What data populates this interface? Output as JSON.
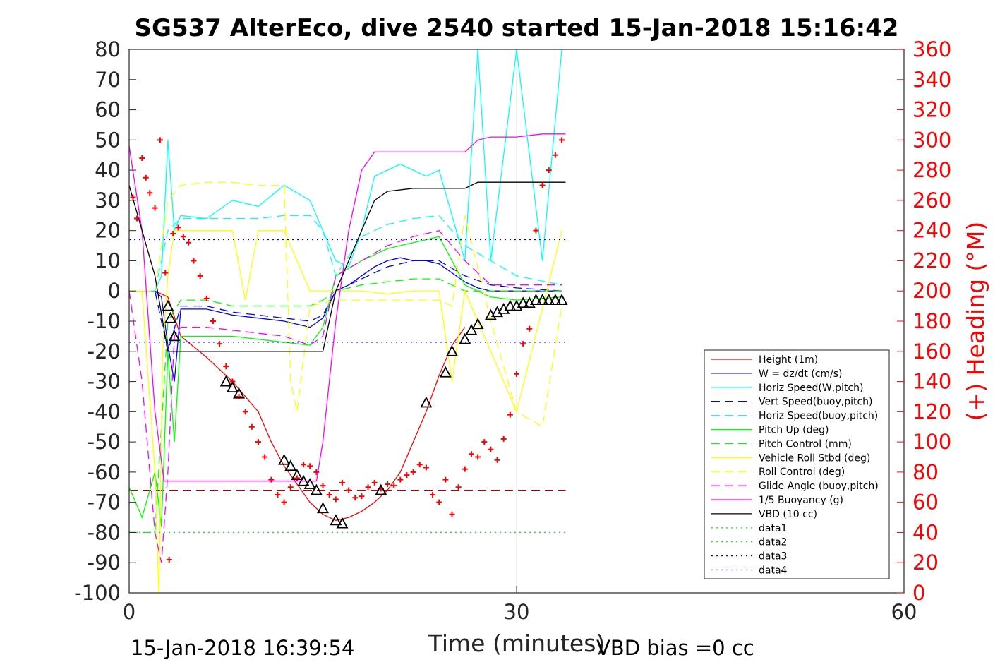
{
  "chart_data": {
    "type": "line",
    "title": "SG537 AlterEco, dive 2540 started 15-Jan-2018 15:16:42",
    "xlabel": "Time (minutes)",
    "ylabel_right": "(+) Heading (°M)",
    "xlim": [
      0,
      60
    ],
    "ylim": [
      -100,
      80
    ],
    "ylim_right": [
      0,
      360
    ],
    "x_ticks": [
      "0",
      "30",
      "60"
    ],
    "y_ticks": [
      "80",
      "70",
      "60",
      "50",
      "40",
      "30",
      "20",
      "10",
      "0",
      "-10",
      "-20",
      "-30",
      "-40",
      "-50",
      "-60",
      "-70",
      "-80",
      "-90",
      "-100"
    ],
    "y_ticks_right": [
      "360",
      "340",
      "320",
      "300",
      "280",
      "260",
      "240",
      "220",
      "200",
      "180",
      "160",
      "140",
      "120",
      "100",
      "80",
      "60",
      "40",
      "20",
      "0"
    ],
    "footer_left": "15-Jan-2018 16:39:54",
    "footer_right": "VBD bias =0 cc",
    "grid": "x-only",
    "legend_position": "right",
    "legend": [
      {
        "label": "Height (1m)",
        "color": "#ff0000",
        "style": "solid"
      },
      {
        "label": "W = dz/dt (cm/s)",
        "color": "#0000ff",
        "style": "solid"
      },
      {
        "label": "Horiz Speed(W,pitch)",
        "color": "#00ffff",
        "style": "solid"
      },
      {
        "label": "Vert Speed(buoy,pitch)",
        "color": "#0000ff",
        "style": "dashed"
      },
      {
        "label": "Horiz Speed(buoy,pitch)",
        "color": "#00ffff",
        "style": "dashed"
      },
      {
        "label": "Pitch Up (deg)",
        "color": "#00ff00",
        "style": "solid"
      },
      {
        "label": "Pitch Control (mm)",
        "color": "#00ff00",
        "style": "dashed"
      },
      {
        "label": "Vehicle Roll Stbd (deg)",
        "color": "#ffff00",
        "style": "solid"
      },
      {
        "label": "Roll Control (deg)",
        "color": "#ffff00",
        "style": "dashed"
      },
      {
        "label": "Glide Angle (buoy,pitch)",
        "color": "#ff00ff",
        "style": "dashed"
      },
      {
        "label": "1/5 Buoyancy (g)",
        "color": "#ff00ff",
        "style": "solid"
      },
      {
        "label": "VBD (10 cc)",
        "color": "#000000",
        "style": "solid"
      },
      {
        "label": "data1",
        "color": "#00ff00",
        "style": "dotted"
      },
      {
        "label": "data2",
        "color": "#00ff00",
        "style": "dotted"
      },
      {
        "label": "data3",
        "color": "#0000ff",
        "style": "dotted"
      },
      {
        "label": "data4",
        "color": "#0000ff",
        "style": "dotted"
      }
    ],
    "series": [
      {
        "name": "Height (1m)",
        "axis": "left",
        "color": "#ff0000",
        "style": "solid",
        "x": [
          0,
          2,
          3,
          4,
          6,
          8,
          10,
          11,
          12,
          13,
          14,
          15,
          16,
          17,
          18,
          19,
          20,
          21,
          22,
          23,
          24,
          25,
          26
        ],
        "y": [
          0,
          0,
          -2,
          -15,
          -22,
          -30,
          -40,
          -50,
          -58,
          -64,
          -70,
          -74,
          -76,
          -75,
          -73,
          -70,
          -66,
          -60,
          -50,
          -40,
          -28,
          -18,
          -12
        ]
      },
      {
        "name": "W = dz/dt (cm/s)",
        "axis": "left",
        "color": "#0000ff",
        "style": "solid",
        "x": [
          0,
          2,
          2.5,
          3,
          3.5,
          4,
          6,
          8,
          10,
          12,
          14,
          15,
          16,
          17,
          18,
          19,
          20,
          21,
          22,
          23,
          24,
          25,
          26,
          27,
          28,
          30,
          33
        ],
        "y": [
          0,
          0,
          -2,
          -18,
          -30,
          -6,
          -6,
          -8,
          -9,
          -10,
          -12,
          -9,
          0,
          2,
          5,
          8,
          10,
          11,
          10,
          10,
          9,
          6,
          3,
          1,
          0,
          0,
          0
        ]
      },
      {
        "name": "Horiz Speed(W,pitch)",
        "axis": "left",
        "color": "#00ffff",
        "style": "solid",
        "x": [
          0,
          2,
          2.5,
          3,
          3.5,
          4,
          6,
          8,
          10,
          12,
          14,
          15,
          16,
          17,
          18,
          19,
          20,
          21,
          22,
          23,
          24,
          25,
          26,
          27,
          28,
          30,
          32,
          33.5
        ],
        "y": [
          0,
          0,
          5,
          50,
          20,
          25,
          24,
          30,
          28,
          35,
          30,
          20,
          10,
          8,
          20,
          38,
          40,
          42,
          40,
          38,
          40,
          25,
          10,
          80,
          10,
          80,
          10,
          80
        ]
      },
      {
        "name": "Vert Speed(buoy,pitch)",
        "axis": "left",
        "color": "#0000ff",
        "style": "dashed",
        "x": [
          0,
          2,
          3,
          4,
          6,
          8,
          10,
          12,
          14,
          15,
          16,
          18,
          20,
          22,
          24,
          26,
          28,
          30,
          33.5
        ],
        "y": [
          0,
          0,
          -20,
          -5,
          -5,
          -7,
          -8,
          -9,
          -10,
          -8,
          0,
          4,
          8,
          10,
          10,
          5,
          2,
          1,
          0
        ]
      },
      {
        "name": "Horiz Speed(buoy,pitch)",
        "axis": "left",
        "color": "#00ffff",
        "style": "dashed",
        "x": [
          0,
          2,
          3,
          4,
          6,
          8,
          10,
          12,
          14,
          15,
          16,
          18,
          20,
          22,
          24,
          26,
          28,
          30,
          33.5
        ],
        "y": [
          0,
          0,
          20,
          24,
          24,
          24,
          24,
          25,
          25,
          20,
          5,
          18,
          22,
          24,
          25,
          15,
          10,
          5,
          2
        ]
      },
      {
        "name": "Pitch Up (deg)",
        "axis": "left",
        "color": "#00ff00",
        "style": "solid",
        "x": [
          0,
          1,
          2,
          2.5,
          3,
          3.5,
          4,
          6,
          8,
          10,
          12,
          14,
          15,
          16,
          18,
          20,
          22,
          24,
          25,
          26,
          28,
          30,
          33.5
        ],
        "y": [
          -65,
          -75,
          -60,
          -78,
          -20,
          -50,
          -15,
          -15,
          -15,
          -16,
          -17,
          -18,
          -12,
          5,
          10,
          14,
          16,
          18,
          10,
          2,
          -2,
          -3,
          -2
        ]
      },
      {
        "name": "Pitch Control (mm)",
        "axis": "left",
        "color": "#00ff00",
        "style": "dashed",
        "x": [
          0,
          2,
          3,
          4,
          6,
          8,
          10,
          12,
          14,
          15,
          16,
          18,
          20,
          22,
          24,
          25,
          26,
          28,
          30,
          33.5
        ],
        "y": [
          -80,
          -80,
          -10,
          -3,
          -3,
          -5,
          -5,
          -5,
          -5,
          -3,
          0,
          2,
          3,
          4,
          4,
          2,
          0,
          0,
          0,
          0
        ]
      },
      {
        "name": "Vehicle Roll Stbd (deg)",
        "axis": "left",
        "color": "#ffff00",
        "style": "solid",
        "x": [
          0,
          1,
          2,
          2.3,
          2.6,
          3,
          3.5,
          4,
          6,
          8,
          9,
          10,
          12,
          14,
          15,
          16,
          18,
          20,
          22,
          24,
          25,
          26,
          28,
          30,
          33.5
        ],
        "y": [
          0,
          0,
          -60,
          -100,
          -20,
          5,
          20,
          20,
          20,
          20,
          -3,
          20,
          20,
          0,
          0,
          0,
          0,
          -1,
          0,
          0,
          -30,
          0,
          -20,
          -40,
          20
        ]
      },
      {
        "name": "Roll Control (deg)",
        "axis": "left",
        "color": "#ffff00",
        "style": "dashed",
        "x": [
          0,
          2,
          3,
          4,
          6,
          8,
          10,
          12,
          12.5,
          13,
          14,
          16,
          18,
          20,
          22,
          24,
          25,
          26,
          28,
          30,
          32,
          33.5
        ],
        "y": [
          0,
          0,
          30,
          35,
          36,
          36,
          35,
          35,
          -30,
          -40,
          -5,
          -3,
          -3,
          -3,
          -3,
          -3,
          -5,
          25,
          -10,
          -40,
          -45,
          -5
        ]
      },
      {
        "name": "Glide Angle (buoy,pitch)",
        "axis": "left",
        "color": "#ff00ff",
        "style": "dashed",
        "x": [
          0,
          1,
          2,
          2.5,
          3,
          3.5,
          4,
          6,
          8,
          10,
          12,
          14,
          15,
          16,
          18,
          20,
          22,
          24,
          26,
          28,
          30,
          33.5
        ],
        "y": [
          0,
          -30,
          -80,
          -90,
          -60,
          -15,
          -12,
          -12,
          -13,
          -14,
          -15,
          -18,
          -15,
          5,
          10,
          15,
          18,
          20,
          10,
          2,
          2,
          2
        ]
      },
      {
        "name": "1/5 Buoyancy (g)",
        "axis": "left",
        "color": "#ff00ff",
        "style": "solid",
        "x": [
          0,
          1,
          2,
          2.7,
          3,
          6,
          10,
          14,
          14.5,
          15,
          16,
          17,
          18,
          19,
          20,
          22,
          24,
          26,
          27,
          28,
          30,
          32,
          33.8
        ],
        "y": [
          48,
          20,
          -40,
          -63,
          -63,
          -63,
          -63,
          -63,
          -63,
          -50,
          -10,
          20,
          40,
          46,
          46,
          46,
          46,
          46,
          50,
          51,
          51,
          52,
          52
        ]
      },
      {
        "name": "VBD (10 cc)",
        "axis": "left",
        "color": "#000000",
        "style": "solid",
        "x": [
          0,
          1,
          2,
          3,
          4,
          6,
          8,
          10,
          12,
          14,
          15,
          16,
          17,
          18,
          19,
          20,
          22,
          24,
          26,
          27,
          28,
          30,
          32,
          33.8
        ],
        "y": [
          35,
          20,
          5,
          -20,
          -20,
          -20,
          -20,
          -20,
          -20,
          -20,
          -20,
          0,
          10,
          20,
          30,
          33,
          34,
          34,
          34,
          36,
          36,
          36,
          36,
          36
        ]
      },
      {
        "name": "data1",
        "axis": "left",
        "color": "#00ff00",
        "style": "dotted",
        "x": [
          0,
          33.8
        ],
        "y": [
          -80,
          -80
        ]
      },
      {
        "name": "data2",
        "axis": "left",
        "color": "#00ff00",
        "style": "dotted",
        "x": [
          0,
          33.8
        ],
        "y": [
          -80,
          -80
        ]
      },
      {
        "name": "data3",
        "axis": "left",
        "color": "#0000ff",
        "style": "dotted",
        "x": [
          0,
          33.8
        ],
        "y": [
          17,
          17
        ]
      },
      {
        "name": "data4",
        "axis": "left",
        "color": "#0000ff",
        "style": "dotted",
        "x": [
          0,
          33.8
        ],
        "y": [
          -17,
          -17
        ]
      }
    ],
    "extra_lines": [
      {
        "axis": "left",
        "color": "#b00000",
        "style": "dashed",
        "x": [
          0,
          33.8
        ],
        "y": [
          -66,
          -66
        ]
      }
    ],
    "heading_points": {
      "axis": "right",
      "marker": "+",
      "color": "#ff0000",
      "x": [
        0.3,
        0.6,
        1,
        1.3,
        1.6,
        2,
        2.4,
        2.8,
        3.1,
        3.4,
        3.8,
        4.2,
        4.6,
        5,
        5.5,
        6,
        6.5,
        7,
        7.5,
        8,
        8.5,
        9,
        9.5,
        10,
        10.5,
        11,
        11.5,
        12,
        12.5,
        13,
        13.5,
        14,
        14.5,
        15,
        15.5,
        16,
        16.5,
        17,
        17.5,
        18,
        18.5,
        19,
        19.5,
        20,
        20.5,
        21,
        21.5,
        22,
        22.5,
        23,
        23.5,
        24,
        24.5,
        25,
        25.5,
        26,
        26.5,
        27,
        27.5,
        28,
        28.5,
        29,
        29.5,
        30,
        30.5,
        31,
        31.5,
        32,
        32.5,
        33,
        33.5
      ],
      "y": [
        262,
        248,
        288,
        275,
        265,
        255,
        300,
        212,
        22,
        238,
        242,
        236,
        232,
        220,
        210,
        195,
        180,
        165,
        150,
        140,
        130,
        120,
        110,
        100,
        90,
        75,
        65,
        60,
        70,
        76,
        85,
        84,
        80,
        71,
        65,
        62,
        73,
        68,
        63,
        64,
        70,
        73,
        69,
        72,
        71,
        75,
        78,
        80,
        85,
        83,
        65,
        60,
        75,
        52,
        70,
        82,
        92,
        90,
        100,
        95,
        88,
        102,
        118,
        145,
        165,
        175,
        240,
        270,
        280,
        290,
        300
      ]
    },
    "triangle_markers": {
      "axis": "left",
      "marker": "triangle",
      "color": "#000000",
      "x": [
        3,
        3.2,
        3.5,
        7.5,
        8,
        8.5,
        12,
        12.5,
        13,
        13.5,
        14,
        14.5,
        15,
        16,
        16.5,
        19.5,
        23,
        24.5,
        25,
        26,
        26.5,
        27,
        28,
        28.5,
        29,
        29.5,
        30,
        30.5,
        31,
        31.5,
        32,
        32.5,
        33,
        33.5
      ],
      "y": [
        -5,
        -9,
        -15,
        -30,
        -32,
        -34,
        -56,
        -58,
        -61,
        -63,
        -64,
        -66,
        -72,
        -76,
        -77,
        -66,
        -37,
        -27,
        -20,
        -16,
        -13,
        -11,
        -8,
        -7,
        -6,
        -5,
        -5,
        -4,
        -4,
        -3,
        -3,
        -3,
        -3,
        -3
      ]
    }
  }
}
